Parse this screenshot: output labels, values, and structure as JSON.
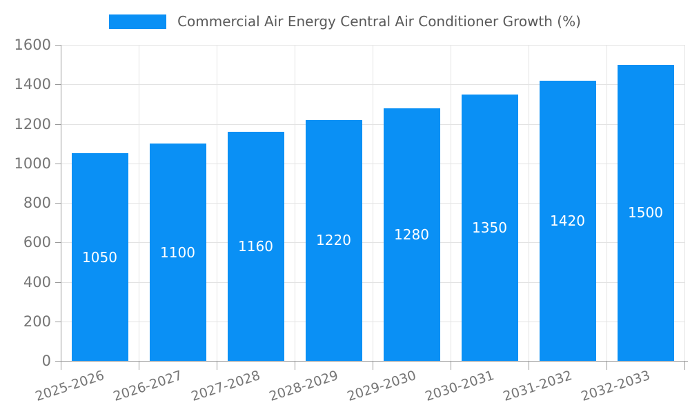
{
  "chart_data": {
    "type": "bar",
    "title": "Commercial Air Energy Central Air Conditioner Growth (%)",
    "legend": [
      {
        "label": "Commercial Air Energy Central Air Conditioner Growth (%)"
      }
    ],
    "legend_position": "top",
    "categories": [
      "2025-2026",
      "2026-2027",
      "2027-2028",
      "2028-2029",
      "2029-2030",
      "2030-2031",
      "2031-2032",
      "2032-2033"
    ],
    "values": [
      1050,
      1100,
      1160,
      1220,
      1280,
      1350,
      1420,
      1500
    ],
    "data_labels": [
      "1050",
      "1100",
      "1160",
      "1220",
      "1280",
      "1350",
      "1420",
      "1500"
    ],
    "xlabel": "",
    "ylabel": "",
    "ylim": [
      0,
      1600
    ],
    "y_ticks": [
      0,
      200,
      400,
      600,
      800,
      1000,
      1200,
      1400,
      1600
    ],
    "grid": true,
    "colors": {
      "bar": "#0a90f5",
      "bar_label": "#ffffff",
      "grid_line": "#e3e3e3",
      "axis_line": "#999999",
      "tick_label": "#757575",
      "title": "#595959"
    }
  }
}
